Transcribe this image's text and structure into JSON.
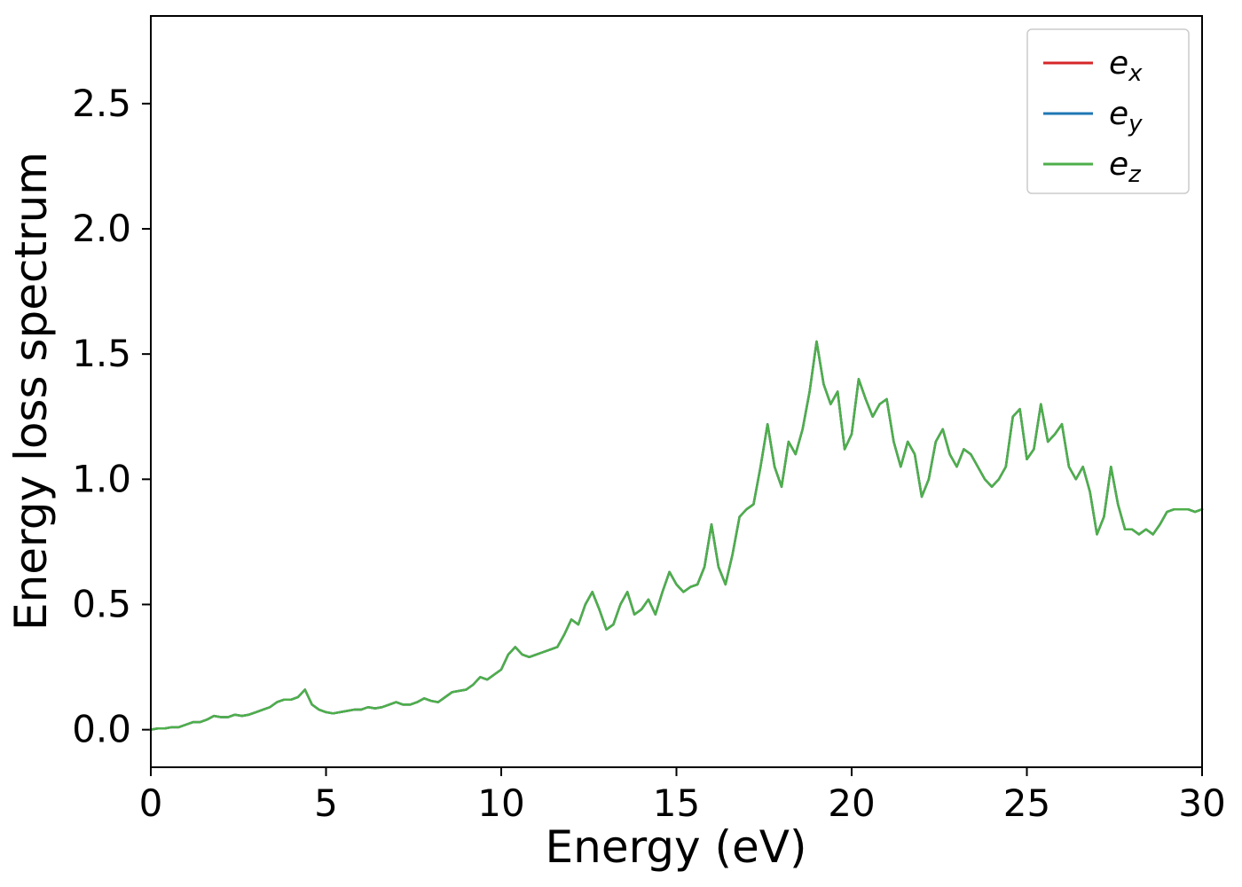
{
  "page": {
    "background": "#ffffff"
  },
  "chart_data": {
    "type": "line",
    "title": "",
    "xlabel": "Energy (eV)",
    "ylabel": "Energy loss spectrum",
    "xlim": [
      0,
      30
    ],
    "ylim": [
      -0.15,
      2.85
    ],
    "xticks": [
      0,
      5,
      10,
      15,
      20,
      25,
      30
    ],
    "xtick_labels": [
      "0",
      "5",
      "10",
      "15",
      "20",
      "25",
      "30"
    ],
    "yticks": [
      0.0,
      0.5,
      1.0,
      1.5,
      2.0,
      2.5
    ],
    "ytick_labels": [
      "0.0",
      "0.5",
      "1.0",
      "1.5",
      "2.0",
      "2.5"
    ],
    "grid": false,
    "legend": {
      "position": "upper right",
      "entries": [
        {
          "label": "e_x",
          "base": "e",
          "sub": "x",
          "color": "#d62728"
        },
        {
          "label": "e_y",
          "base": "e",
          "sub": "y",
          "color": "#1f77b4"
        },
        {
          "label": "e_z",
          "base": "e",
          "sub": "z",
          "color": "#4daf4a"
        }
      ]
    },
    "note": "All three series (e_x, e_y, e_z) overlap exactly; only e_z (green, drawn last) is visible.",
    "x": [
      0,
      0.2,
      0.4,
      0.6,
      0.8,
      1,
      1.2,
      1.4,
      1.6,
      1.8,
      2,
      2.2,
      2.4,
      2.6,
      2.8,
      3,
      3.2,
      3.4,
      3.6,
      3.8,
      4,
      4.2,
      4.4,
      4.6,
      4.8,
      5,
      5.2,
      5.4,
      5.6,
      5.8,
      6,
      6.2,
      6.4,
      6.6,
      6.8,
      7,
      7.2,
      7.4,
      7.6,
      7.8,
      8,
      8.2,
      8.4,
      8.6,
      8.8,
      9,
      9.2,
      9.4,
      9.6,
      9.8,
      10,
      10.2,
      10.4,
      10.6,
      10.8,
      11,
      11.2,
      11.4,
      11.6,
      11.8,
      12,
      12.2,
      12.4,
      12.6,
      12.8,
      13,
      13.2,
      13.4,
      13.6,
      13.8,
      14,
      14.2,
      14.4,
      14.6,
      14.8,
      15,
      15.2,
      15.4,
      15.6,
      15.8,
      16,
      16.2,
      16.4,
      16.6,
      16.8,
      17,
      17.2,
      17.4,
      17.6,
      17.8,
      18,
      18.2,
      18.4,
      18.6,
      18.8,
      19,
      19.2,
      19.4,
      19.6,
      19.8,
      20,
      20.2,
      20.4,
      20.6,
      20.8,
      21,
      21.2,
      21.4,
      21.6,
      21.8,
      22,
      22.2,
      22.4,
      22.6,
      22.8,
      23,
      23.2,
      23.4,
      23.6,
      23.8,
      24,
      24.2,
      24.4,
      24.6,
      24.8,
      25,
      25.2,
      25.4,
      25.6,
      25.8,
      26,
      26.2,
      26.4,
      26.6,
      26.8,
      27,
      27.2,
      27.4,
      27.6,
      27.8,
      28,
      28.2,
      28.4,
      28.6,
      28.8,
      29,
      29.2,
      29.4,
      29.6,
      29.8,
      30
    ],
    "shared_y": [
      0.0,
      0.005,
      0.005,
      0.01,
      0.01,
      0.02,
      0.03,
      0.03,
      0.04,
      0.055,
      0.05,
      0.05,
      0.06,
      0.055,
      0.06,
      0.07,
      0.08,
      0.09,
      0.11,
      0.12,
      0.12,
      0.13,
      0.16,
      0.1,
      0.08,
      0.07,
      0.065,
      0.07,
      0.075,
      0.08,
      0.08,
      0.09,
      0.085,
      0.09,
      0.1,
      0.11,
      0.1,
      0.1,
      0.11,
      0.125,
      0.115,
      0.11,
      0.13,
      0.15,
      0.155,
      0.16,
      0.18,
      0.21,
      0.2,
      0.22,
      0.24,
      0.3,
      0.33,
      0.3,
      0.29,
      0.3,
      0.31,
      0.32,
      0.33,
      0.38,
      0.44,
      0.42,
      0.5,
      0.55,
      0.48,
      0.4,
      0.42,
      0.5,
      0.55,
      0.46,
      0.48,
      0.52,
      0.46,
      0.55,
      0.63,
      0.58,
      0.55,
      0.57,
      0.58,
      0.65,
      0.82,
      0.65,
      0.58,
      0.7,
      0.85,
      0.88,
      0.9,
      1.05,
      1.22,
      1.05,
      0.97,
      1.15,
      1.1,
      1.2,
      1.35,
      1.55,
      1.38,
      1.3,
      1.35,
      1.12,
      1.18,
      1.4,
      1.32,
      1.25,
      1.3,
      1.32,
      1.15,
      1.05,
      1.15,
      1.1,
      0.93,
      1.0,
      1.15,
      1.2,
      1.1,
      1.05,
      1.12,
      1.1,
      1.05,
      1.0,
      0.97,
      1.0,
      1.05,
      1.25,
      1.28,
      1.08,
      1.12,
      1.3,
      1.15,
      1.18,
      1.22,
      1.05,
      1.0,
      1.05,
      0.95,
      0.78,
      0.85,
      1.05,
      0.9,
      0.8,
      0.8,
      0.78,
      0.8,
      0.78,
      0.82,
      0.87,
      0.88,
      0.88,
      0.88,
      0.87,
      0.88
    ],
    "series": [
      {
        "name": "e_x",
        "color": "#d62728",
        "values": "shared_y"
      },
      {
        "name": "e_y",
        "color": "#1f77b4",
        "values": "shared_y"
      },
      {
        "name": "e_z",
        "color": "#4daf4a",
        "values": "shared_y"
      }
    ]
  }
}
